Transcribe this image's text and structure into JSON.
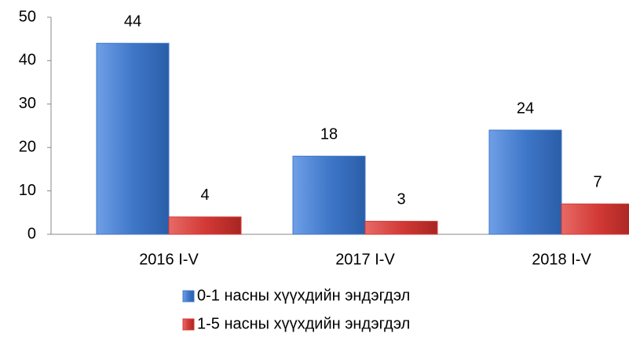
{
  "chart_data": {
    "type": "bar",
    "categories": [
      "2016 I-V",
      "2017 I-V",
      "2018 I-V"
    ],
    "series": [
      {
        "name": "0-1 насны хүүхдийн эндэгдэл",
        "color": "#3f77c9",
        "values": [
          44,
          18,
          24
        ]
      },
      {
        "name": "1-5 насны хүүхдийн эндэгдэл",
        "color": "#d33a36",
        "values": [
          4,
          3,
          7
        ]
      }
    ],
    "ylim": [
      0,
      50
    ],
    "yticks": [
      0,
      10,
      20,
      30,
      40,
      50
    ],
    "grid": false,
    "legend": "bottom"
  }
}
